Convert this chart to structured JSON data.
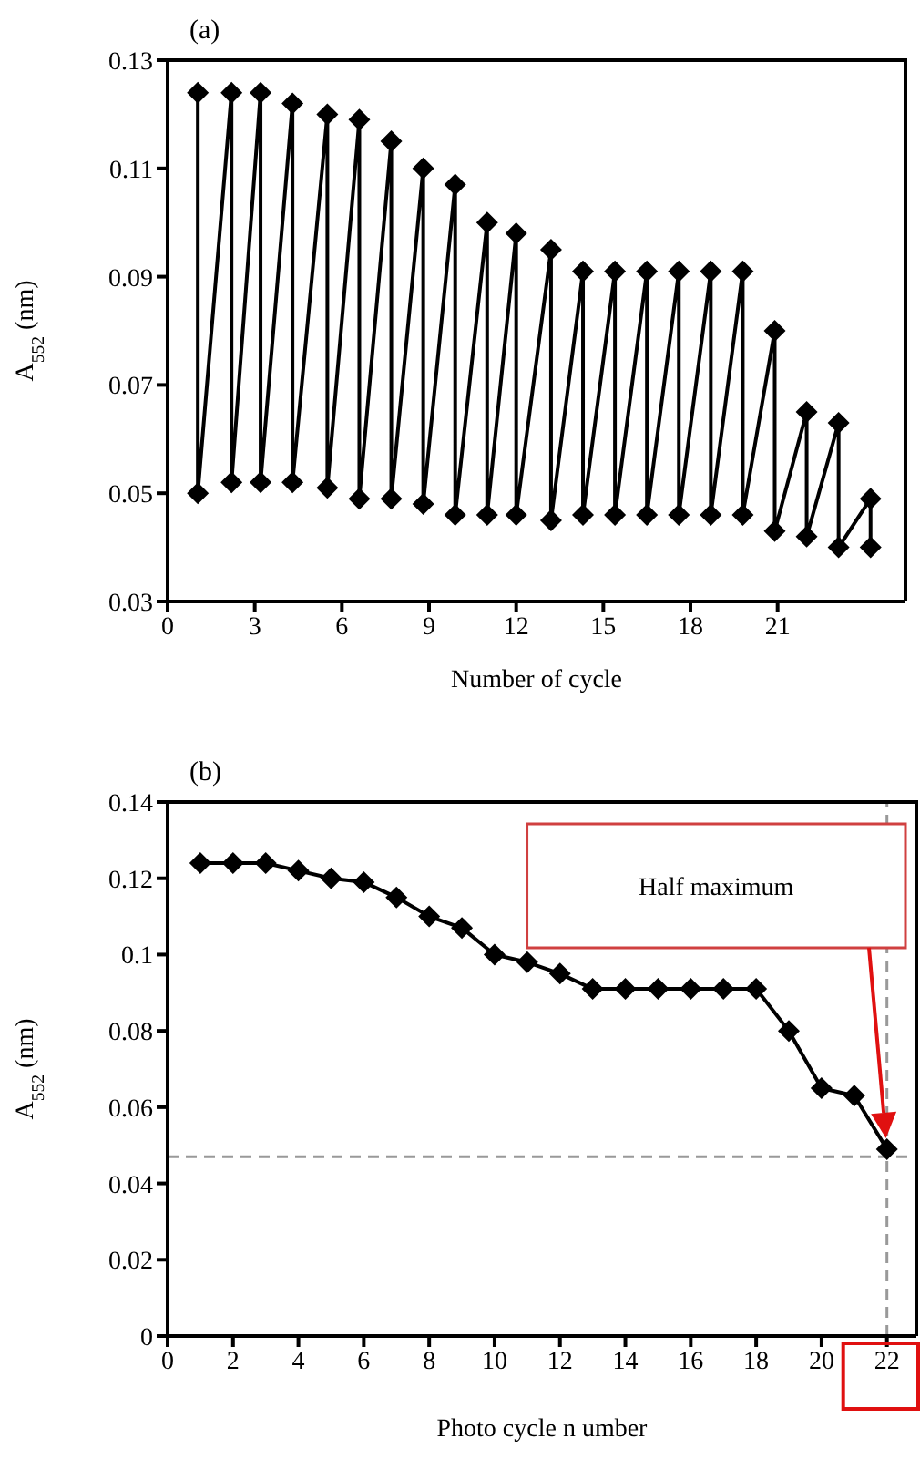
{
  "chart_data": [
    {
      "type": "line",
      "title": "(a)",
      "xlabel": "Number of cycle",
      "ylabel": "A$_{552}$ (nm)",
      "xlim": [
        0,
        25.4
      ],
      "xticks": [
        0,
        3,
        6,
        9,
        12,
        15,
        18,
        21
      ],
      "ylim": [
        0.03,
        0.13
      ],
      "yticks": [
        0.03,
        0.05,
        0.07,
        0.09,
        0.11,
        0.13
      ],
      "marker": "diamond",
      "line_style": "solid",
      "series": [
        {
          "color": "#000000",
          "x": [
            1.04,
            1.04,
            2.2,
            2.2,
            3.2,
            3.2,
            4.3,
            4.3,
            5.5,
            5.5,
            6.6,
            6.6,
            7.7,
            7.7,
            8.8,
            8.8,
            9.9,
            9.9,
            11,
            11,
            12,
            12,
            13.2,
            13.2,
            14.3,
            14.3,
            15.4,
            15.4,
            16.5,
            16.5,
            17.6,
            17.6,
            18.7,
            18.7,
            19.8,
            19.8,
            20.9,
            20.9,
            22,
            22,
            23.1,
            23.1,
            24.2,
            24.2
          ],
          "values": [
            0.124,
            0.05,
            0.124,
            0.052,
            0.124,
            0.052,
            0.122,
            0.052,
            0.12,
            0.051,
            0.119,
            0.049,
            0.115,
            0.049,
            0.11,
            0.048,
            0.107,
            0.046,
            0.1,
            0.046,
            0.098,
            0.046,
            0.095,
            0.045,
            0.091,
            0.046,
            0.091,
            0.046,
            0.091,
            0.046,
            0.091,
            0.046,
            0.091,
            0.046,
            0.091,
            0.046,
            0.08,
            0.043,
            0.065,
            0.042,
            0.063,
            0.04,
            0.049,
            0.04
          ]
        }
      ]
    },
    {
      "type": "line",
      "title": "(b)",
      "xlabel": "Photo cycle n umber",
      "ylabel": "A$_{552}$ (nm)",
      "xlim": [
        0,
        22.9
      ],
      "xticks": [
        0,
        2,
        4,
        6,
        8,
        10,
        12,
        14,
        16,
        18,
        20,
        22
      ],
      "ylim": [
        0,
        0.14
      ],
      "yticks": [
        0,
        0.02,
        0.04,
        0.06,
        0.08,
        0.1,
        0.12,
        0.14
      ],
      "marker": "diamond",
      "line_style": "solid",
      "x": [
        1,
        2,
        3,
        4,
        5,
        6,
        7,
        8,
        9,
        10,
        11,
        12,
        13,
        14,
        15,
        16,
        17,
        18,
        19,
        20,
        21,
        22
      ],
      "series": [
        {
          "color": "#000000",
          "values": [
            0.124,
            0.124,
            0.124,
            0.122,
            0.12,
            0.119,
            0.115,
            0.11,
            0.107,
            0.1,
            0.098,
            0.095,
            0.091,
            0.091,
            0.091,
            0.091,
            0.091,
            0.091,
            0.08,
            0.065,
            0.063,
            0.049
          ]
        }
      ],
      "ref_lines": [
        {
          "axis": "y",
          "value": 0.047,
          "color": "#999999",
          "line_style": "dashed"
        },
        {
          "axis": "x",
          "value": 22,
          "color": "#999999",
          "line_style": "dashed"
        }
      ],
      "annotations": [
        "Half maximum"
      ]
    }
  ]
}
